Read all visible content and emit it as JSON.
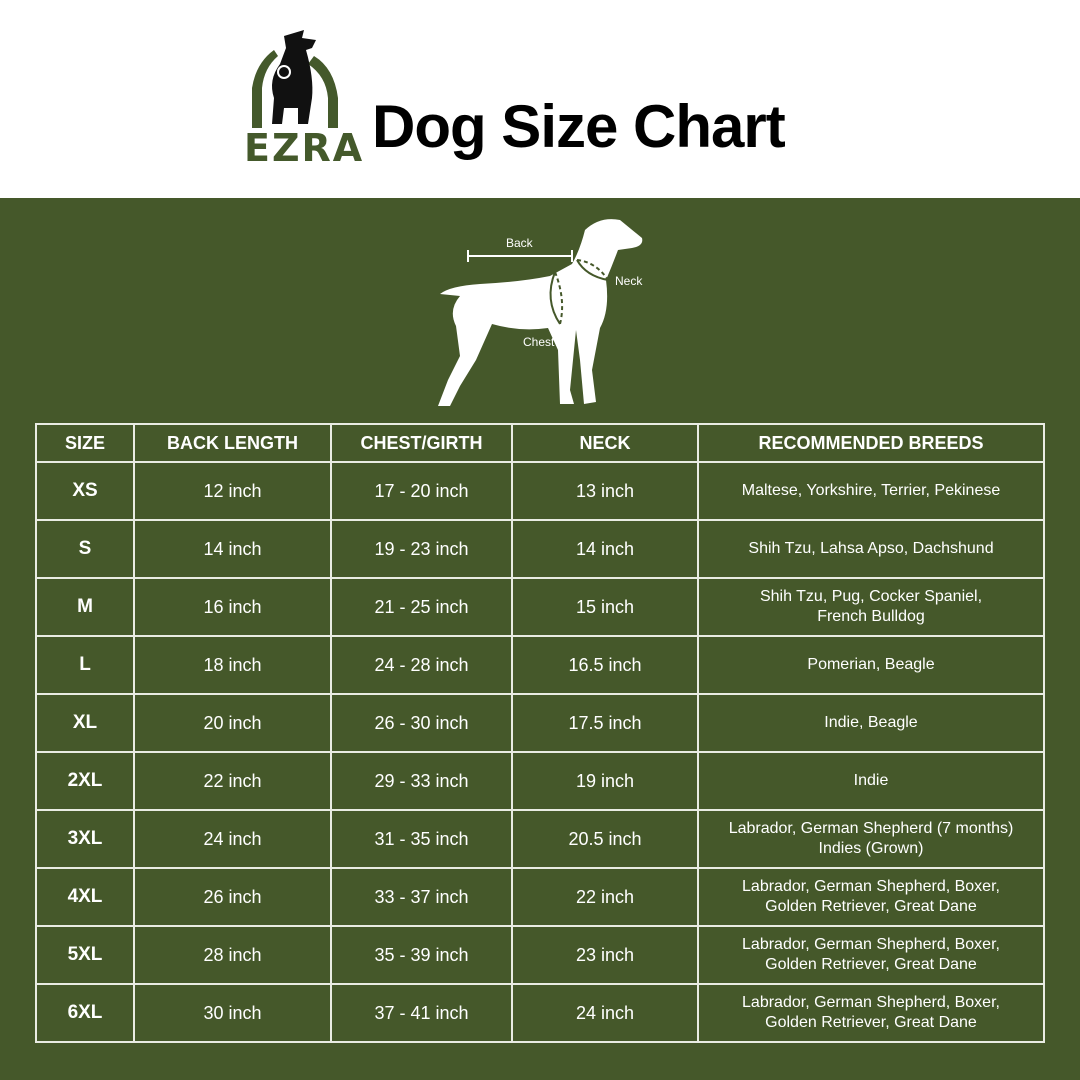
{
  "brand": {
    "logo_text": "EZRA",
    "green": "#45582a"
  },
  "title": "Dog Size Chart",
  "diagram": {
    "back": "Back",
    "neck": "Neck",
    "chest": "Chest"
  },
  "table": {
    "headers": [
      "SIZE",
      "BACK LENGTH",
      "CHEST/GIRTH",
      "NECK",
      "RECOMMENDED BREEDS"
    ],
    "rows": [
      {
        "size": "XS",
        "back": "12 inch",
        "chest": "17 - 20 inch",
        "neck": "13 inch",
        "breeds": [
          "Maltese, Yorkshire, Terrier, Pekinese"
        ]
      },
      {
        "size": "S",
        "back": "14 inch",
        "chest": "19 - 23 inch",
        "neck": "14 inch",
        "breeds": [
          "Shih Tzu, Lahsa Apso, Dachshund"
        ]
      },
      {
        "size": "M",
        "back": "16 inch",
        "chest": "21 - 25 inch",
        "neck": "15 inch",
        "breeds": [
          "Shih Tzu, Pug, Cocker Spaniel,",
          "French Bulldog"
        ]
      },
      {
        "size": "L",
        "back": "18 inch",
        "chest": "24 - 28 inch",
        "neck": "16.5 inch",
        "breeds": [
          "Pomerian, Beagle"
        ]
      },
      {
        "size": "XL",
        "back": "20 inch",
        "chest": "26 - 30 inch",
        "neck": "17.5 inch",
        "breeds": [
          "Indie, Beagle"
        ]
      },
      {
        "size": "2XL",
        "back": "22 inch",
        "chest": "29 - 33 inch",
        "neck": "19 inch",
        "breeds": [
          "Indie"
        ]
      },
      {
        "size": "3XL",
        "back": "24 inch",
        "chest": "31 - 35 inch",
        "neck": "20.5 inch",
        "breeds": [
          "Labrador, German Shepherd (7 months)",
          "Indies (Grown)"
        ]
      },
      {
        "size": "4XL",
        "back": "26 inch",
        "chest": "33 - 37 inch",
        "neck": "22 inch",
        "breeds": [
          "Labrador, German Shepherd, Boxer,",
          "Golden Retriever, Great Dane"
        ]
      },
      {
        "size": "5XL",
        "back": "28 inch",
        "chest": "35 - 39 inch",
        "neck": "23 inch",
        "breeds": [
          "Labrador, German Shepherd, Boxer,",
          "Golden Retriever, Great Dane"
        ]
      },
      {
        "size": "6XL",
        "back": "30 inch",
        "chest": "37 - 41 inch",
        "neck": "24 inch",
        "breeds": [
          "Labrador, German Shepherd, Boxer,",
          "Golden Retriever, Great Dane"
        ]
      }
    ]
  }
}
